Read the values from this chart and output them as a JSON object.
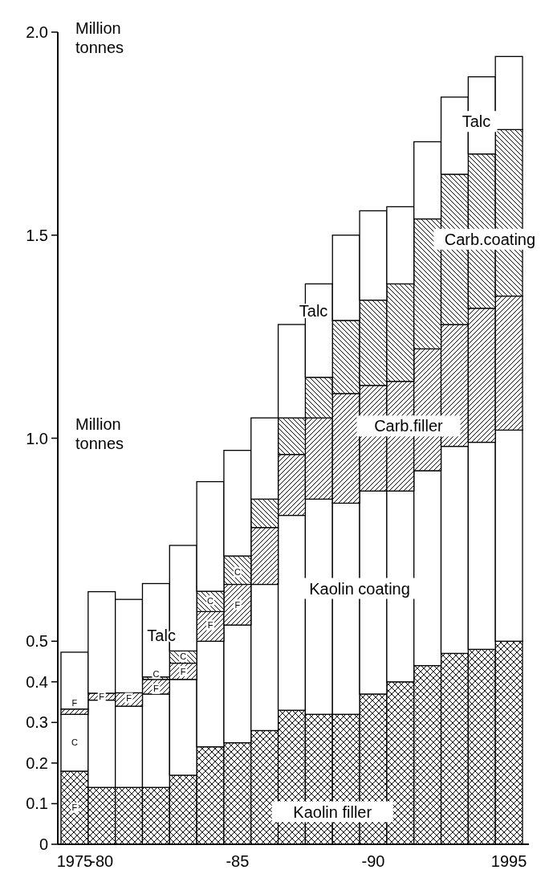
{
  "chart_data": {
    "type": "bar",
    "stacked": true,
    "ylabel": "Million tonnes",
    "categories": [
      "1975",
      "-80",
      null,
      null,
      null,
      null,
      "-85",
      null,
      null,
      null,
      null,
      "-90",
      null,
      null,
      null,
      null,
      "1995"
    ],
    "series": [
      {
        "name": "Kaolin filler",
        "color": "#000000",
        "values": [
          0.18,
          0.14,
          0.14,
          0.14,
          0.17,
          0.24,
          0.25,
          0.28,
          0.33,
          0.32,
          0.32,
          0.37,
          0.4,
          0.44,
          0.47,
          0.48,
          0.5
        ]
      },
      {
        "name": "Kaolin coating",
        "color": "#ffffff",
        "values": [
          0.14,
          0.215,
          0.2,
          0.23,
          0.236,
          0.26,
          0.29,
          0.36,
          0.48,
          0.53,
          0.52,
          0.5,
          0.47,
          0.48,
          0.51,
          0.51,
          0.52
        ]
      },
      {
        "name": "Carb.filler",
        "color": "#000000",
        "values": [
          0.013,
          0.017,
          0.033,
          0.036,
          0.04,
          0.073,
          0.1,
          0.14,
          0.15,
          0.2,
          0.27,
          0.26,
          0.27,
          0.3,
          0.3,
          0.33,
          0.33
        ]
      },
      {
        "name": "Carb.coating",
        "color": "#000000",
        "values": [
          0,
          0,
          0,
          0.006,
          0.03,
          0.05,
          0.07,
          0.07,
          0.09,
          0.1,
          0.18,
          0.21,
          0.24,
          0.32,
          0.37,
          0.38,
          0.41
        ]
      },
      {
        "name": "Talc",
        "color": "#ffffff",
        "values": [
          0.14,
          0.25,
          0.23,
          0.23,
          0.26,
          0.27,
          0.26,
          0.2,
          0.23,
          0.23,
          0.21,
          0.22,
          0.19,
          0.19,
          0.19,
          0.19,
          0.18
        ]
      }
    ],
    "ylim": [
      0,
      2.0
    ],
    "yticks": [
      0,
      0.1,
      0.2,
      0.3,
      0.4,
      0.5,
      {
        "value": 1,
        "label": "1.0"
      },
      1.5,
      {
        "value": 2,
        "label": "2.0"
      }
    ],
    "annotations": [
      "Million tonnes",
      "Talc",
      "Talc",
      "C",
      "F",
      "F",
      "F",
      "F",
      "F",
      "C",
      "F",
      "C",
      "F",
      "C",
      "F",
      "C"
    ]
  }
}
